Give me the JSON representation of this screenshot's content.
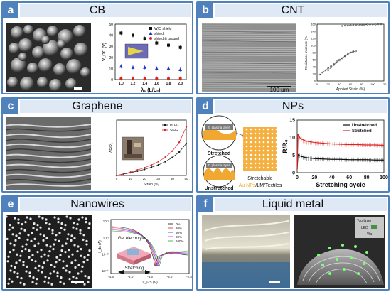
{
  "figure": {
    "panels": [
      {
        "letter": "a",
        "title": "CB"
      },
      {
        "letter": "b",
        "title": "CNT"
      },
      {
        "letter": "c",
        "title": "Graphene"
      },
      {
        "letter": "d",
        "title": "NPs"
      },
      {
        "letter": "e",
        "title": "Nanowires"
      },
      {
        "letter": "f",
        "title": "Liquid metal"
      }
    ],
    "scale_bar_b": "100 μm",
    "schematic_d": {
      "layer_top": "G plasma layer",
      "layer_bottom": "G plasma layer",
      "stretched": "Stretched",
      "unstretched": "Unstretched",
      "caption_line1": "Stretchable",
      "caption_np": "Au NPs",
      "caption_rest": "/LM/Textiles"
    },
    "inset_e": {
      "gel": "Gel electrolyte",
      "stretching": "Stretching"
    },
    "photo_f_labels": {
      "top": "Top layer",
      "led": "LED",
      "via": "Via"
    }
  },
  "chart_data": [
    {
      "type": "scatter",
      "panel": "a",
      "xlabel": "λ₁ (L/L₀)",
      "ylabel": "V_OC (V)",
      "x": [
        1.0,
        1.2,
        1.4,
        1.6,
        1.8,
        2.0
      ],
      "ylim": [
        0,
        50
      ],
      "yticks": [
        0,
        10,
        20,
        30,
        40,
        50
      ],
      "xticks": [
        "1.0",
        "1.2",
        "1.4",
        "1.6",
        "1.8",
        "2.0"
      ],
      "legend_position": "top-right",
      "series": [
        {
          "name": "W/O shield",
          "color": "#111111",
          "marker": "square",
          "values": [
            42,
            40,
            37,
            33,
            31,
            29
          ]
        },
        {
          "name": "shield",
          "color": "#2233cc",
          "marker": "triangle",
          "values": [
            12,
            11,
            11,
            10,
            10,
            9
          ]
        },
        {
          "name": "shield & ground",
          "color": "#dd2222",
          "marker": "circle",
          "values": [
            1,
            1,
            1,
            1,
            1,
            1
          ]
        }
      ]
    },
    {
      "type": "scatter",
      "panel": "b",
      "xlabel": "Applied Strain (%)",
      "ylabel": "Resistance increase (%)",
      "xlim": [
        0,
        120
      ],
      "ylim": [
        0,
        160
      ],
      "xticks": [
        0,
        20,
        40,
        60,
        80,
        100,
        120
      ],
      "yticks": [
        0,
        20,
        40,
        60,
        80,
        100,
        120,
        140,
        160
      ],
      "series": [
        {
          "name": "",
          "color": "#444444",
          "x": [
            5,
            10,
            15,
            20,
            25,
            30,
            35,
            40,
            45,
            50,
            55,
            60,
            65
          ],
          "values": [
            18,
            24,
            30,
            36,
            42,
            48,
            55,
            60,
            64,
            70,
            74,
            80,
            84
          ]
        },
        {
          "name": "",
          "color": "#444444",
          "x": [
            20,
            25,
            30,
            35,
            40,
            45,
            50,
            55,
            60,
            65,
            70
          ],
          "values": [
            30,
            38,
            45,
            52,
            58,
            64,
            70,
            76,
            80,
            82,
            84
          ]
        },
        {
          "name": "",
          "color": "#444444",
          "x": [
            45,
            50,
            55,
            60,
            65,
            70,
            75,
            80,
            85,
            90,
            95,
            100,
            105,
            110,
            115
          ],
          "values": [
            155,
            156,
            156,
            157,
            157,
            158,
            158,
            158,
            158,
            159,
            159,
            159,
            159,
            160,
            160
          ]
        }
      ]
    },
    {
      "type": "line",
      "panel": "c",
      "xlabel": "Strain (%)",
      "ylabel": "ΔR/R₀",
      "x": [
        0,
        5,
        10,
        15,
        20,
        25,
        30,
        35,
        40,
        45,
        50
      ],
      "xlim": [
        0,
        50
      ],
      "ylim": [
        0,
        2.0
      ],
      "xticks": [
        0,
        10,
        20,
        30,
        40,
        50
      ],
      "legend_position": "top-right",
      "series": [
        {
          "name": "PU-G",
          "color": "#111111",
          "values": [
            0.0,
            0.05,
            0.1,
            0.16,
            0.22,
            0.3,
            0.38,
            0.5,
            0.65,
            0.85,
            1.15
          ]
        },
        {
          "name": "Sil-G",
          "color": "#dd2222",
          "values": [
            0.0,
            0.06,
            0.12,
            0.2,
            0.28,
            0.38,
            0.5,
            0.66,
            0.88,
            1.2,
            1.75
          ]
        }
      ]
    },
    {
      "type": "line",
      "panel": "d",
      "xlabel": "Stretching cycle",
      "ylabel": "R/R₀",
      "x": [
        0,
        1,
        2,
        3,
        5,
        10,
        20,
        30,
        40,
        50,
        60,
        70,
        80,
        90,
        100
      ],
      "xlim": [
        0,
        100
      ],
      "ylim": [
        0,
        15
      ],
      "xticks": [
        0,
        20,
        40,
        60,
        80,
        100
      ],
      "yticks": [
        0,
        5,
        10,
        15
      ],
      "legend_position": "top-right",
      "series": [
        {
          "name": "Unstretched",
          "color": "#111111",
          "values": [
            1,
            5.2,
            5.0,
            4.8,
            4.6,
            4.3,
            4.0,
            3.9,
            3.8,
            3.8,
            3.7,
            3.7,
            3.7,
            3.6,
            3.6
          ]
        },
        {
          "name": "Stretched",
          "color": "#dd2222",
          "values": [
            1,
            11.0,
            10.4,
            10.0,
            9.6,
            9.0,
            8.6,
            8.4,
            8.2,
            8.1,
            8.0,
            8.0,
            7.9,
            7.9,
            7.8
          ]
        }
      ]
    },
    {
      "type": "line",
      "panel": "e",
      "xlabel": "V_GS (V)",
      "ylabel": "I_ds (A)",
      "xlim": [
        -4.5,
        -2.5
      ],
      "xticks": [
        "-4.5",
        "-4.0",
        "-3.5",
        "-3.0",
        "-2.5"
      ],
      "yticks": [
        "10⁻⁶",
        "10⁻⁸",
        "10⁻¹⁰",
        "10⁻¹²"
      ],
      "legend_position": "top-right",
      "series": [
        {
          "name": "0%",
          "color": "#111111"
        },
        {
          "name": "20%",
          "color": "#dd2222"
        },
        {
          "name": "50%",
          "color": "#2233cc"
        },
        {
          "name": "80%",
          "color": "#cc22cc"
        },
        {
          "name": "100%",
          "color": "#22aa22"
        }
      ]
    }
  ]
}
